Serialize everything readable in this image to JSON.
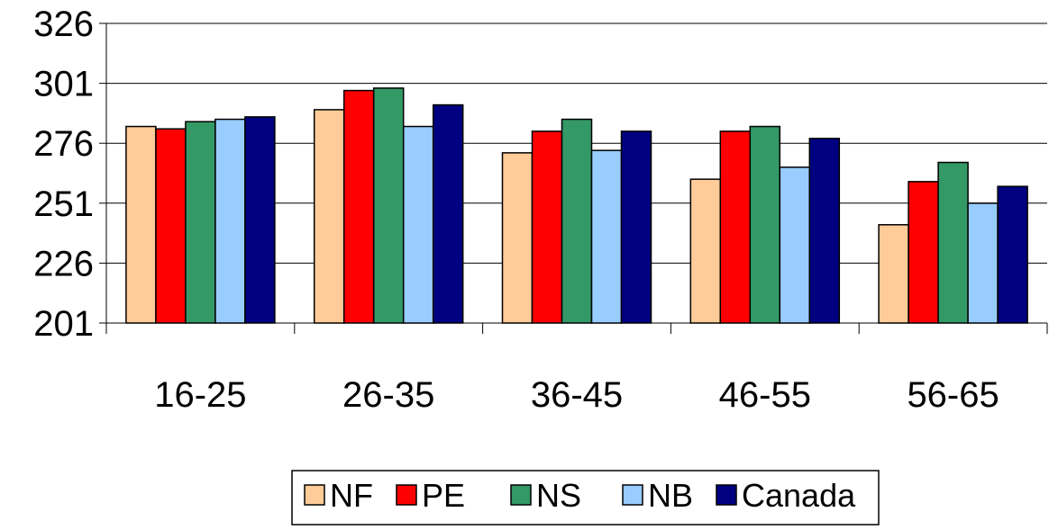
{
  "chart_data": {
    "type": "bar",
    "categories": [
      "16-25",
      "26-35",
      "36-45",
      "46-55",
      "56-65"
    ],
    "series": [
      {
        "name": "NF",
        "color": "#FFCC99",
        "values": [
          283,
          290,
          272,
          261,
          242
        ]
      },
      {
        "name": "PE",
        "color": "#FF0000",
        "values": [
          282,
          298,
          281,
          281,
          260
        ]
      },
      {
        "name": "NS",
        "color": "#339966",
        "values": [
          285,
          299,
          286,
          283,
          268
        ]
      },
      {
        "name": "NB",
        "color": "#99CCFF",
        "values": [
          286,
          283,
          273,
          266,
          251
        ]
      },
      {
        "name": "Canada",
        "color": "#000080",
        "values": [
          287,
          292,
          281,
          278,
          258
        ]
      }
    ],
    "yticks": [
      "326",
      "301",
      "276",
      "251",
      "226",
      "201"
    ],
    "ylim": [
      201,
      326
    ],
    "grid": true,
    "legend_position": "bottom"
  }
}
